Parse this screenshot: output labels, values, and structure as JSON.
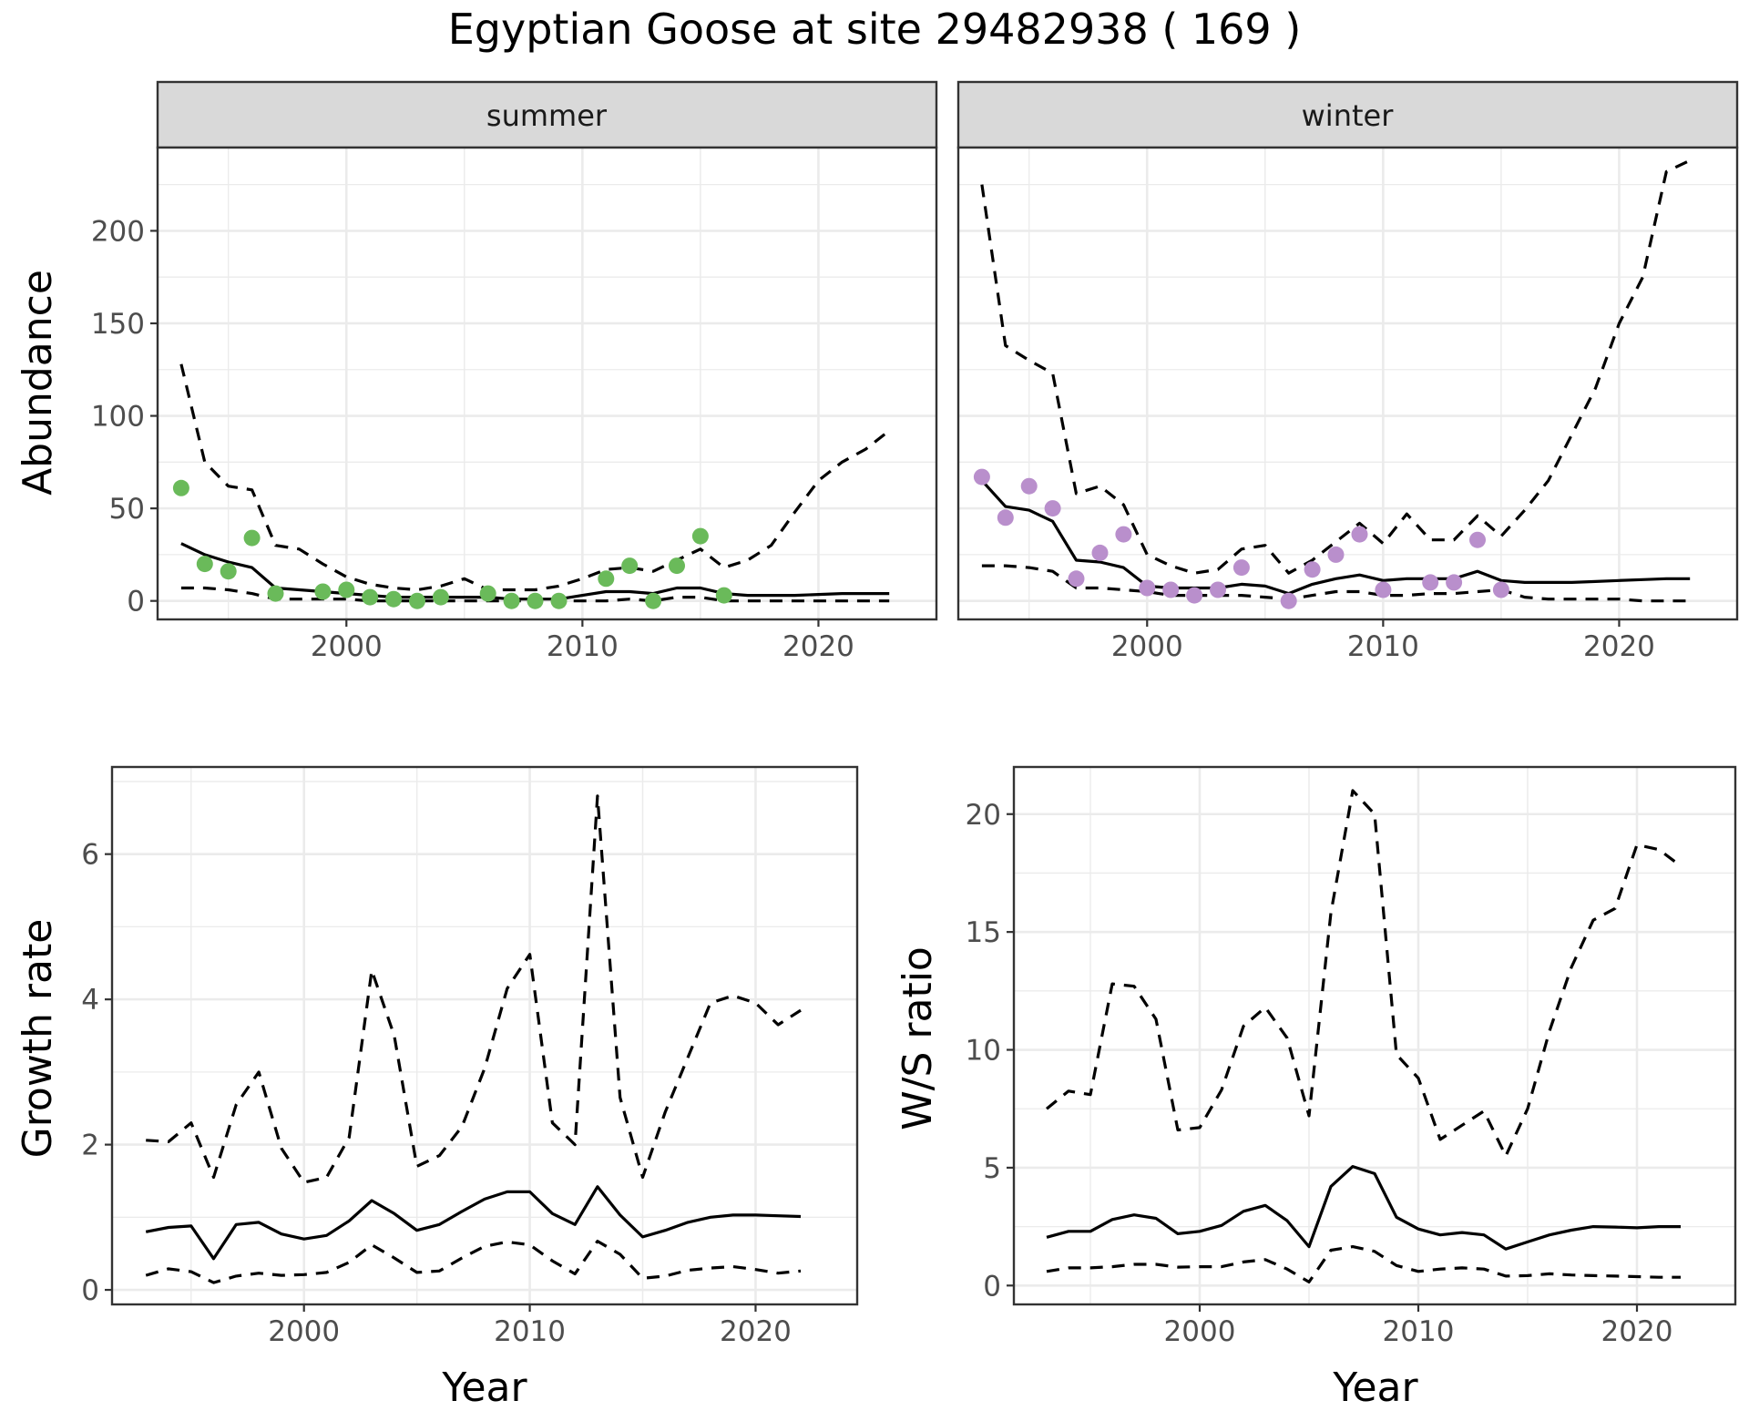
{
  "title": "Egyptian Goose at site 29482938 ( 169 )",
  "chart_data": [
    {
      "type": "line",
      "facet": "summer",
      "ylabel": "Abundance",
      "xlabel": "",
      "xlim": [
        1992,
        2025
      ],
      "ylim": [
        -10,
        245
      ],
      "x_ticks": [
        2000,
        2010,
        2020
      ],
      "y_ticks": [
        0,
        50,
        100,
        150,
        200
      ],
      "point_color": "#6aba5a",
      "grid": true,
      "x": [
        1993,
        1994,
        1995,
        1996,
        1997,
        1998,
        1999,
        2000,
        2001,
        2002,
        2003,
        2004,
        2005,
        2006,
        2007,
        2008,
        2009,
        2010,
        2011,
        2012,
        2013,
        2014,
        2015,
        2016,
        2017,
        2018,
        2019,
        2020,
        2021,
        2022,
        2023
      ],
      "series": [
        {
          "role": "estimate",
          "values": [
            31,
            25,
            21,
            18,
            7,
            6,
            5,
            4,
            3,
            2,
            2,
            2,
            2,
            2,
            1,
            1,
            1,
            3,
            5,
            5,
            4,
            7,
            7,
            4,
            3,
            3,
            3,
            3.5,
            4,
            4,
            4
          ]
        },
        {
          "role": "upper",
          "values": [
            128,
            75,
            62,
            60,
            30,
            28,
            20,
            13,
            9,
            7,
            6,
            8,
            12,
            6,
            6,
            6,
            8,
            12,
            17,
            18,
            16,
            22,
            28,
            18,
            22,
            30,
            48,
            65,
            75,
            82,
            92
          ]
        },
        {
          "role": "lower",
          "values": [
            7,
            7,
            6,
            4,
            1,
            1,
            1,
            1,
            0,
            0,
            0,
            0,
            0,
            0,
            0,
            0,
            0,
            0,
            0,
            1,
            0,
            2,
            2,
            0,
            0,
            0,
            0,
            0,
            0,
            0,
            0
          ]
        }
      ],
      "points": {
        "x": [
          1993,
          1994,
          1995,
          1996,
          1997,
          1999,
          2000,
          2001,
          2002,
          2003,
          2004,
          2006,
          2007,
          2008,
          2009,
          2011,
          2012,
          2013,
          2014,
          2015,
          2016
        ],
        "y": [
          61,
          20,
          16,
          34,
          4,
          5,
          6,
          2,
          1,
          0,
          2,
          4,
          0,
          0,
          0,
          12,
          19,
          0,
          19,
          35,
          3
        ]
      }
    },
    {
      "type": "line",
      "facet": "winter",
      "ylabel": "",
      "xlabel": "",
      "xlim": [
        1992,
        2025
      ],
      "ylim": [
        -10,
        245
      ],
      "x_ticks": [
        2000,
        2010,
        2020
      ],
      "y_ticks": [],
      "point_color": "#b98fcc",
      "grid": true,
      "x": [
        1993,
        1994,
        1995,
        1996,
        1997,
        1998,
        1999,
        2000,
        2001,
        2002,
        2003,
        2004,
        2005,
        2006,
        2007,
        2008,
        2009,
        2010,
        2011,
        2012,
        2013,
        2014,
        2015,
        2016,
        2017,
        2018,
        2019,
        2020,
        2021,
        2022,
        2023
      ],
      "series": [
        {
          "role": "estimate",
          "values": [
            65,
            51,
            49,
            43,
            22,
            21,
            18,
            8,
            7,
            7,
            7,
            9,
            8,
            4,
            9,
            12,
            14,
            11,
            12,
            12,
            12,
            16,
            11,
            10,
            10,
            10,
            10.5,
            11,
            11.5,
            12,
            12
          ]
        },
        {
          "role": "upper",
          "values": [
            225,
            138,
            130,
            123,
            58,
            62,
            52,
            25,
            19,
            15,
            17,
            28,
            30,
            15,
            22,
            32,
            42,
            31,
            47,
            33,
            33,
            46,
            35,
            49,
            65,
            90,
            115,
            150,
            175,
            232,
            238
          ]
        },
        {
          "role": "lower",
          "values": [
            19,
            19,
            18,
            16,
            7,
            7,
            6,
            5,
            3,
            3,
            3,
            3,
            2,
            1,
            3,
            5,
            5,
            3,
            3,
            4,
            4,
            5,
            6,
            2,
            1,
            1,
            1,
            1,
            0,
            0,
            0
          ]
        }
      ],
      "points": {
        "x": [
          1993,
          1994,
          1995,
          1996,
          1997,
          1998,
          1999,
          2000,
          2001,
          2002,
          2003,
          2004,
          2006,
          2007,
          2008,
          2009,
          2010,
          2012,
          2013,
          2014,
          2015
        ],
        "y": [
          67,
          45,
          62,
          50,
          12,
          26,
          36,
          7,
          6,
          3,
          6,
          18,
          0,
          17,
          25,
          36,
          6,
          10,
          10,
          33,
          6
        ]
      }
    },
    {
      "type": "line",
      "facet": "",
      "ylabel": "Growth rate",
      "xlabel": "Year",
      "xlim": [
        1991.5,
        2024.5
      ],
      "ylim": [
        -0.2,
        7.2
      ],
      "x_ticks": [
        2000,
        2010,
        2020
      ],
      "y_ticks": [
        0,
        2,
        4,
        6
      ],
      "grid": true,
      "x": [
        1993,
        1994,
        1995,
        1996,
        1997,
        1998,
        1999,
        2000,
        2001,
        2002,
        2003,
        2004,
        2005,
        2006,
        2007,
        2008,
        2009,
        2010,
        2011,
        2012,
        2013,
        2014,
        2015,
        2016,
        2017,
        2018,
        2019,
        2020,
        2021,
        2022
      ],
      "series": [
        {
          "role": "estimate",
          "values": [
            0.8,
            0.86,
            0.88,
            0.43,
            0.9,
            0.93,
            0.77,
            0.7,
            0.75,
            0.95,
            1.23,
            1.05,
            0.82,
            0.9,
            1.08,
            1.25,
            1.35,
            1.35,
            1.05,
            0.9,
            1.42,
            1.03,
            0.73,
            0.82,
            0.93,
            1.0,
            1.03,
            1.03,
            1.02,
            1.01
          ]
        },
        {
          "role": "upper",
          "values": [
            2.06,
            2.04,
            2.3,
            1.55,
            2.55,
            3.0,
            1.95,
            1.48,
            1.55,
            2.1,
            4.4,
            3.5,
            1.7,
            1.85,
            2.25,
            3.05,
            4.15,
            4.62,
            2.3,
            2.0,
            6.8,
            2.65,
            1.55,
            2.45,
            3.2,
            3.95,
            4.05,
            3.95,
            3.65,
            3.85
          ]
        },
        {
          "role": "lower",
          "values": [
            0.2,
            0.29,
            0.25,
            0.1,
            0.19,
            0.23,
            0.2,
            0.21,
            0.24,
            0.38,
            0.62,
            0.44,
            0.24,
            0.26,
            0.44,
            0.6,
            0.66,
            0.62,
            0.4,
            0.22,
            0.67,
            0.49,
            0.16,
            0.19,
            0.27,
            0.3,
            0.32,
            0.28,
            0.23,
            0.26
          ]
        }
      ]
    },
    {
      "type": "line",
      "facet": "",
      "ylabel": "W/S ratio",
      "xlabel": "Year",
      "xlim": [
        1991.5,
        2024.5
      ],
      "ylim": [
        -0.8,
        22.0
      ],
      "x_ticks": [
        2000,
        2010,
        2020
      ],
      "y_ticks": [
        0,
        5,
        10,
        15,
        20
      ],
      "grid": true,
      "x": [
        1993,
        1994,
        1995,
        1996,
        1997,
        1998,
        1999,
        2000,
        2001,
        2002,
        2003,
        2004,
        2005,
        2006,
        2007,
        2008,
        2009,
        2010,
        2011,
        2012,
        2013,
        2014,
        2015,
        2016,
        2017,
        2018,
        2019,
        2020,
        2021,
        2022
      ],
      "series": [
        {
          "role": "estimate",
          "values": [
            2.05,
            2.3,
            2.3,
            2.8,
            3.0,
            2.85,
            2.2,
            2.3,
            2.55,
            3.15,
            3.4,
            2.75,
            1.65,
            4.2,
            5.05,
            4.75,
            2.9,
            2.4,
            2.15,
            2.25,
            2.15,
            1.55,
            1.85,
            2.15,
            2.35,
            2.5,
            2.48,
            2.45,
            2.5,
            2.5
          ]
        },
        {
          "role": "upper",
          "values": [
            7.5,
            8.25,
            8.1,
            12.8,
            12.7,
            11.3,
            6.6,
            6.7,
            8.3,
            11.0,
            11.8,
            10.5,
            7.2,
            15.8,
            21.0,
            20.0,
            9.8,
            8.8,
            6.2,
            6.8,
            7.4,
            5.5,
            7.5,
            10.8,
            13.5,
            15.5,
            16.0,
            18.7,
            18.5,
            17.8
          ]
        },
        {
          "role": "lower",
          "values": [
            0.6,
            0.75,
            0.75,
            0.8,
            0.9,
            0.9,
            0.78,
            0.8,
            0.8,
            1.0,
            1.1,
            0.7,
            0.15,
            1.5,
            1.65,
            1.45,
            0.85,
            0.6,
            0.7,
            0.75,
            0.7,
            0.4,
            0.42,
            0.5,
            0.45,
            0.42,
            0.4,
            0.38,
            0.35,
            0.35
          ]
        }
      ]
    }
  ]
}
